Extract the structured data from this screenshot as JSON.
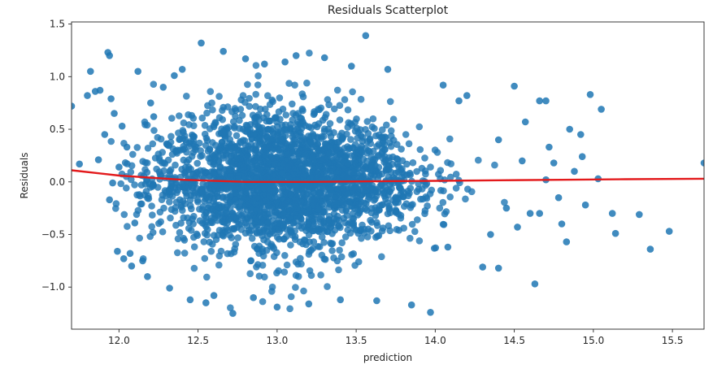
{
  "chart_data": {
    "type": "scatter",
    "title": "Residuals Scatterplot",
    "xlabel": "prediction",
    "ylabel": "Residuals",
    "xlim": [
      11.7,
      15.7
    ],
    "ylim": [
      -1.4,
      1.52
    ],
    "xticks": [
      {
        "value": 12.0,
        "label": "12.0"
      },
      {
        "value": 12.5,
        "label": "12.5"
      },
      {
        "value": 13.0,
        "label": "13.0"
      },
      {
        "value": 13.5,
        "label": "13.5"
      },
      {
        "value": 14.0,
        "label": "14.0"
      },
      {
        "value": 14.5,
        "label": "14.5"
      },
      {
        "value": 15.0,
        "label": "15.0"
      },
      {
        "value": 15.5,
        "label": "15.5"
      }
    ],
    "yticks": [
      {
        "value": 1.5,
        "label": "1.5"
      },
      {
        "value": 1.0,
        "label": "1.0"
      },
      {
        "value": 0.5,
        "label": "0.5"
      },
      {
        "value": 0.0,
        "label": "0.0"
      },
      {
        "value": -0.5,
        "label": "−0.5"
      },
      {
        "value": -1.0,
        "label": "−1.0"
      }
    ],
    "grid": false,
    "legend": false,
    "point_color": "#1f77b4",
    "line_color": "#e31a1c",
    "series": [
      {
        "kind": "scatter",
        "points": [
          [
            11.7,
            0.72
          ],
          [
            11.75,
            0.17
          ],
          [
            11.8,
            0.82
          ],
          [
            11.82,
            1.05
          ],
          [
            11.85,
            0.86
          ],
          [
            11.88,
            0.87
          ],
          [
            11.87,
            0.21
          ],
          [
            11.91,
            0.45
          ],
          [
            11.93,
            1.23
          ],
          [
            11.94,
            1.2
          ],
          [
            11.95,
            0.79
          ],
          [
            11.94,
            -0.17
          ],
          [
            11.96,
            -0.01
          ],
          [
            11.97,
            0.65
          ],
          [
            11.99,
            -0.66
          ],
          [
            12.0,
            0.14
          ],
          [
            12.02,
            0.53
          ],
          [
            12.03,
            -0.73
          ],
          [
            12.05,
            0.33
          ],
          [
            12.07,
            -0.68
          ],
          [
            12.08,
            -0.8
          ],
          [
            12.1,
            -0.39
          ],
          [
            12.12,
            1.05
          ],
          [
            12.15,
            -0.75
          ],
          [
            12.18,
            -0.9
          ],
          [
            12.2,
            0.75
          ],
          [
            12.22,
            0.62
          ],
          [
            12.28,
            0.9
          ],
          [
            12.32,
            -1.01
          ],
          [
            12.35,
            1.01
          ],
          [
            12.4,
            1.07
          ],
          [
            12.45,
            -1.12
          ],
          [
            12.52,
            1.32
          ],
          [
            12.55,
            -1.15
          ],
          [
            12.6,
            -1.08
          ],
          [
            12.66,
            1.24
          ],
          [
            12.72,
            -1.25
          ],
          [
            12.8,
            1.17
          ],
          [
            12.85,
            -1.1
          ],
          [
            12.92,
            1.12
          ],
          [
            13.0,
            -1.19
          ],
          [
            13.05,
            1.14
          ],
          [
            13.12,
            1.2
          ],
          [
            13.2,
            -1.16
          ],
          [
            13.3,
            1.18
          ],
          [
            13.4,
            -1.12
          ],
          [
            13.47,
            1.1
          ],
          [
            13.56,
            1.39
          ],
          [
            13.63,
            -1.13
          ],
          [
            13.7,
            1.07
          ],
          [
            13.85,
            -1.17
          ],
          [
            13.97,
            -1.24
          ],
          [
            14.05,
            0.92
          ],
          [
            14.08,
            -0.62
          ],
          [
            14.15,
            0.77
          ],
          [
            14.2,
            0.82
          ],
          [
            14.3,
            -0.81
          ],
          [
            14.4,
            -0.82
          ],
          [
            14.5,
            0.91
          ],
          [
            14.52,
            -0.43
          ],
          [
            14.57,
            0.57
          ],
          [
            14.6,
            -0.3
          ],
          [
            14.63,
            -0.97
          ],
          [
            14.66,
            0.77
          ],
          [
            14.7,
            0.77
          ],
          [
            14.72,
            0.33
          ],
          [
            14.75,
            0.18
          ],
          [
            14.78,
            -0.15
          ],
          [
            14.8,
            -0.4
          ],
          [
            14.83,
            -0.57
          ],
          [
            14.88,
            0.1
          ],
          [
            14.92,
            0.45
          ],
          [
            14.93,
            0.24
          ],
          [
            14.95,
            -0.22
          ],
          [
            14.98,
            0.83
          ],
          [
            15.03,
            0.03
          ],
          [
            15.05,
            0.69
          ],
          [
            15.12,
            -0.3
          ],
          [
            15.14,
            -0.49
          ],
          [
            15.29,
            -0.31
          ],
          [
            15.36,
            -0.64
          ],
          [
            15.48,
            -0.47
          ],
          [
            15.7,
            0.18
          ],
          [
            14.85,
            0.5
          ],
          [
            14.66,
            -0.3
          ],
          [
            14.7,
            0.02
          ],
          [
            14.55,
            0.2
          ],
          [
            14.45,
            -0.25
          ],
          [
            14.4,
            0.4
          ],
          [
            14.35,
            -0.5
          ]
        ]
      },
      {
        "kind": "line",
        "name": "",
        "x": [
          11.7,
          12.0,
          12.4,
          12.8,
          13.2,
          13.6,
          14.0,
          14.4,
          14.8,
          15.2,
          15.7
        ],
        "y": [
          0.11,
          0.06,
          0.02,
          0.0,
          0.0,
          0.005,
          0.01,
          0.015,
          0.02,
          0.025,
          0.03
        ]
      }
    ]
  }
}
